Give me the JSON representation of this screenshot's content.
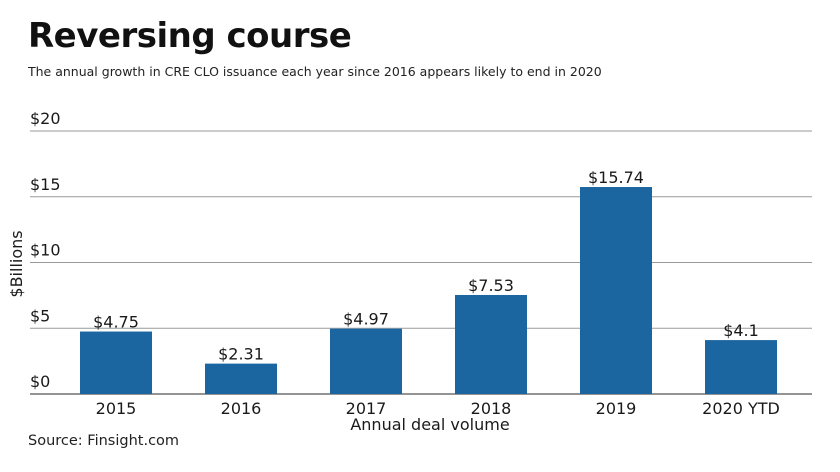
{
  "chart_data": {
    "type": "bar",
    "title": "Reversing course",
    "subtitle": "The annual growth in CRE CLO issuance each year since 2016 appears likely to end in 2020",
    "categories": [
      "2015",
      "2016",
      "2017",
      "2018",
      "2019",
      "2020 YTD"
    ],
    "values": [
      4.75,
      2.31,
      4.97,
      7.53,
      15.74,
      4.1
    ],
    "data_labels": [
      "$4.75",
      "$2.31",
      "$4.97",
      "$7.53",
      "$15.74",
      "$4.1"
    ],
    "xlabel": "Annual deal volume",
    "ylabel": "$Billions",
    "ylim": [
      0,
      20
    ],
    "yticks": [
      0,
      5,
      10,
      15,
      20
    ],
    "ytick_labels": [
      "$0",
      "$5",
      "$10",
      "$15",
      "$20"
    ],
    "grid": true,
    "legend": "none",
    "bar_color": "#1b66a1",
    "source": "Source: Finsight.com"
  }
}
